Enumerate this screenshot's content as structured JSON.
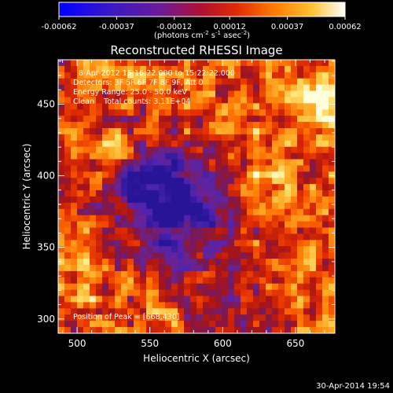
{
  "chart_data": {
    "type": "heatmap",
    "title": "Reconstructed RHESSI Image",
    "xlabel": "Heliocentric X (arcsec)",
    "ylabel": "Heliocentric Y (arcsec)",
    "xlim": [
      487,
      677
    ],
    "ylim": [
      290,
      481
    ],
    "x_ticks": [
      500,
      550,
      600,
      650
    ],
    "y_ticks": [
      300,
      350,
      400,
      450
    ],
    "colorbar": {
      "tick_labels": [
        "-0.00062",
        "-0.00037",
        "-0.00012",
        "0.00012",
        "0.00037",
        "0.00062"
      ],
      "range": [
        -0.00062,
        0.00062
      ],
      "units": "(photons cm",
      "units_sup1": "-2",
      "units_mid": " s",
      "units_sup2": "-1",
      "units_mid2": " asec",
      "units_sup3": "-2",
      "units_end": ")"
    },
    "annotations": [
      "8-Apr-2012 15:16:22.000 to 15:22:22.000",
      "Detectors: 3F 5F 6F 7F 8F 9F, Att 0",
      "Energy Range: 25.0 - 50.0 keV",
      "Clean    Total counts: 3.11E+04"
    ],
    "peak_label": "Position of Peak = [668,430]",
    "peak": [
      668,
      430
    ],
    "colors": [
      "#0000ff",
      "#4b1fb0",
      "#7a1a8a",
      "#c01a10",
      "#ff6a00",
      "#ffc040",
      "#ffffcc"
    ]
  },
  "footer_timestamp": "30-Apr-2014 19:54"
}
